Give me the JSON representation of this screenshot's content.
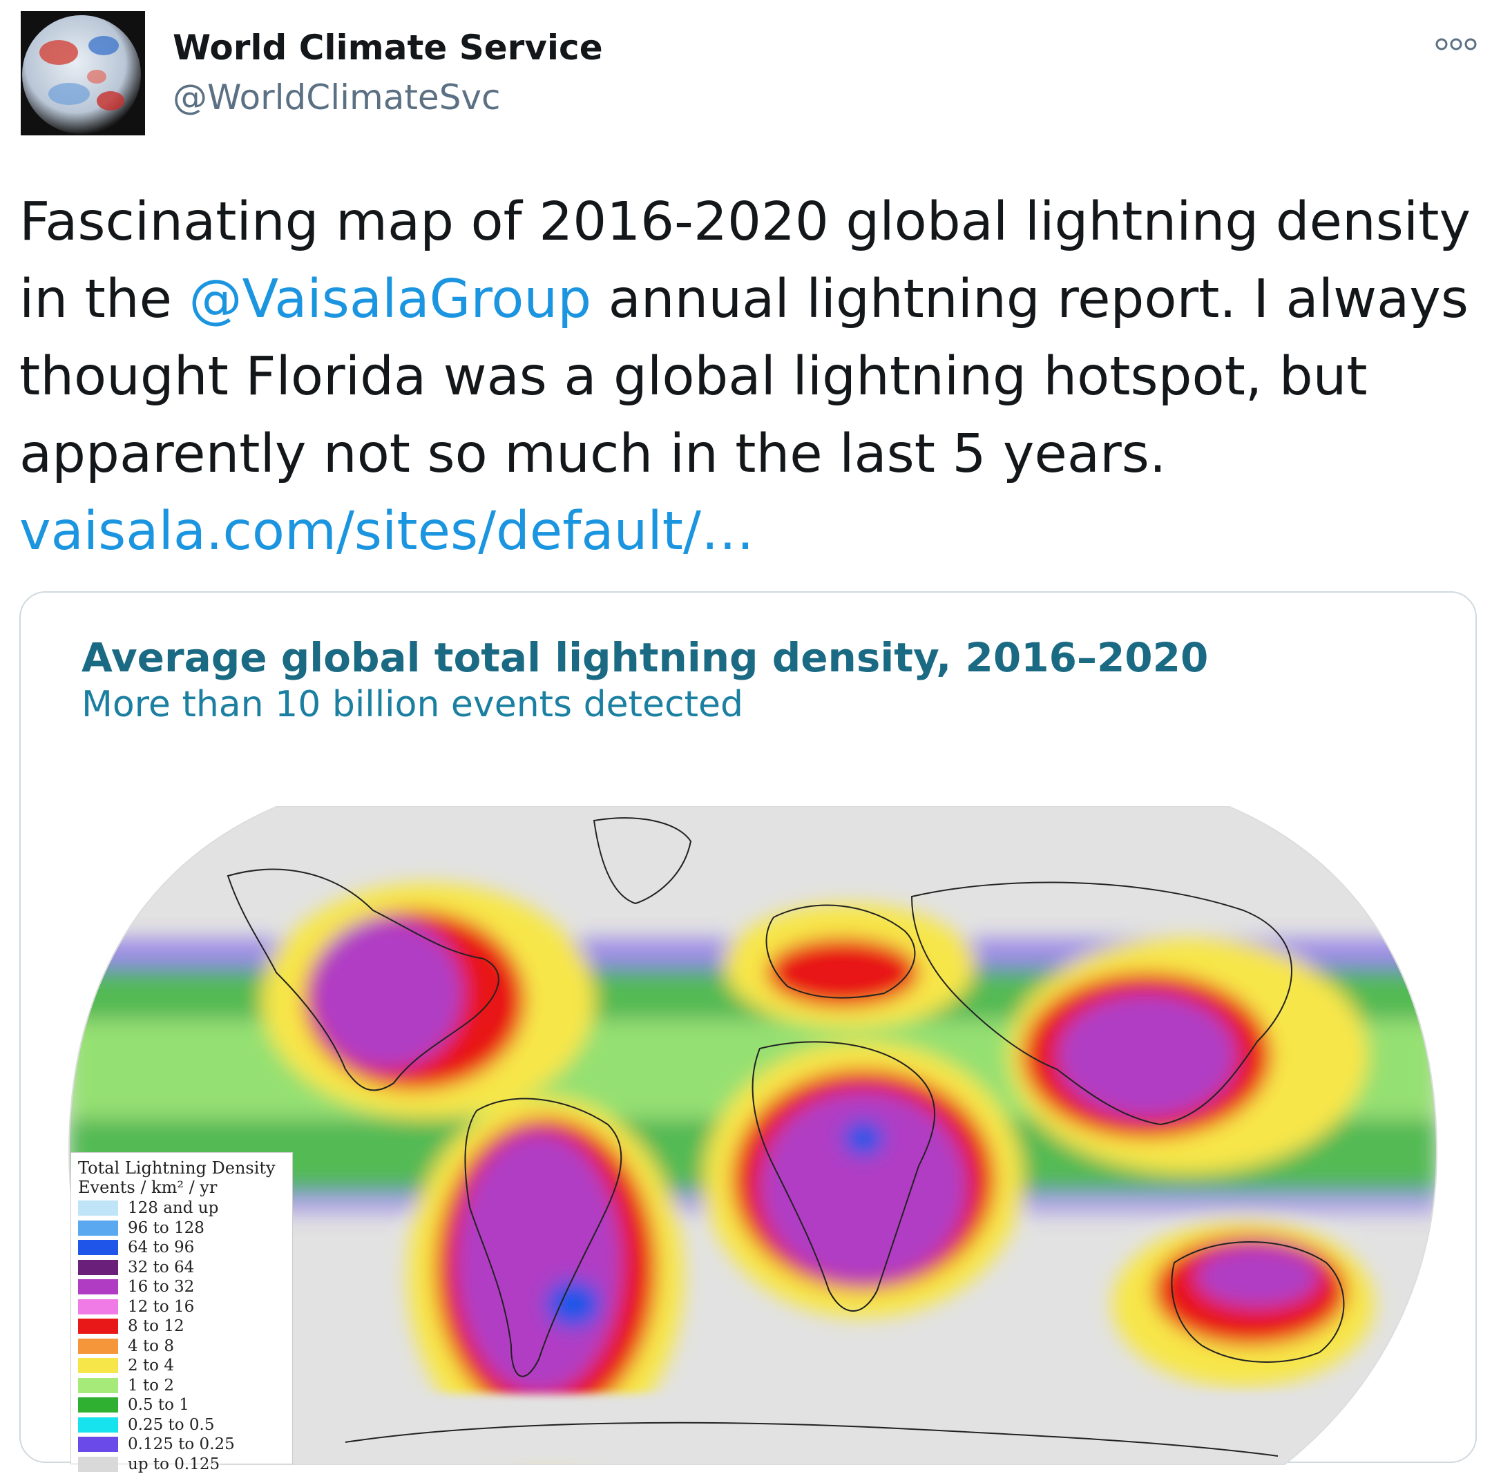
{
  "tweet": {
    "author_name": "World Climate Service",
    "author_handle": "@WorldClimateSvc",
    "more_icon": "more-options-icon",
    "text_1": "Fascinating map of 2016-2020 global lightning density in the ",
    "mention": "@VaisalaGroup",
    "text_2": " annual lightning report.  I always thought Florida was a global lightning hotspot, but apparently not so much in the last 5 years.  ",
    "link": "vaisala.com/sites/default/…"
  },
  "image": {
    "title": "Average global total lightning density, 2016–2020",
    "subtitle": "More than 10 billion events detected",
    "legend": {
      "title": "Total Lightning Density",
      "units": "Events / km² / yr",
      "items": [
        {
          "label": "128 and up",
          "color": "#bfe3f7"
        },
        {
          "label": "96 to 128",
          "color": "#5aa9f0"
        },
        {
          "label": "64 to 96",
          "color": "#1f55e8"
        },
        {
          "label": "32 to 64",
          "color": "#6a1f7a"
        },
        {
          "label": "16 to 32",
          "color": "#b03cc4"
        },
        {
          "label": "12 to 16",
          "color": "#f07ae6"
        },
        {
          "label": "8 to 12",
          "color": "#e81818"
        },
        {
          "label": "4 to 8",
          "color": "#f5963a"
        },
        {
          "label": "2 to 4",
          "color": "#f7e64a"
        },
        {
          "label": "1 to 2",
          "color": "#a6ea7a"
        },
        {
          "label": "0.5 to 1",
          "color": "#30b030"
        },
        {
          "label": "0.25 to 0.5",
          "color": "#16e3ee"
        },
        {
          "label": "0.125 to 0.25",
          "color": "#6a4ae8"
        },
        {
          "label": "up to 0.125",
          "color": "#d9d9d9"
        }
      ]
    }
  }
}
